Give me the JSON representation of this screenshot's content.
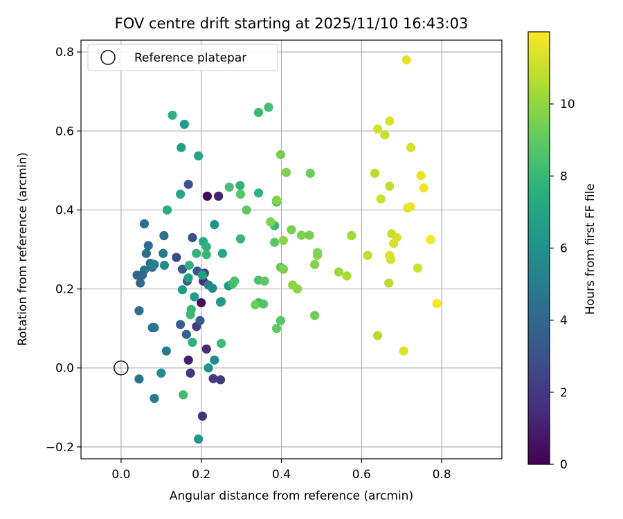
{
  "chart_data": {
    "type": "scatter",
    "title": "FOV centre drift starting at 2025/11/10 16:43:03",
    "xlabel": "Angular distance from reference (arcmin)",
    "ylabel": "Rotation from reference (arcmin)",
    "xlim": [
      -0.1,
      0.95
    ],
    "ylim": [
      -0.23,
      0.83
    ],
    "xticks": [
      0.0,
      0.2,
      0.4,
      0.6,
      0.8
    ],
    "xtick_labels": [
      "0.0",
      "0.2",
      "0.4",
      "0.6",
      "0.8"
    ],
    "yticks": [
      -0.2,
      0.0,
      0.2,
      0.4,
      0.6,
      0.8
    ],
    "ytick_labels": [
      "−0.2",
      "0.0",
      "0.2",
      "0.4",
      "0.6",
      "0.8"
    ],
    "grid": true,
    "legend": {
      "position": "top-left",
      "entries": [
        "Reference platepar"
      ]
    },
    "reference_point": {
      "x": 0.0,
      "y": 0.0,
      "label": "Reference platepar"
    },
    "colorbar": {
      "label": "Hours from first FF file",
      "colormap": "viridis",
      "range": [
        0,
        12
      ],
      "ticks": [
        0,
        2,
        4,
        6,
        8,
        10
      ],
      "tick_labels": [
        "0",
        "2",
        "4",
        "6",
        "8",
        "10"
      ]
    },
    "points": [
      {
        "x": 0.215,
        "y": 0.435,
        "c": 0.2
      },
      {
        "x": 0.243,
        "y": 0.435,
        "c": 1.2
      },
      {
        "x": 0.2,
        "y": 0.165,
        "c": 0.4
      },
      {
        "x": 0.168,
        "y": 0.02,
        "c": 1.0
      },
      {
        "x": 0.213,
        "y": 0.048,
        "c": 1.4
      },
      {
        "x": 0.203,
        "y": -0.122,
        "c": 1.7
      },
      {
        "x": 0.173,
        "y": -0.013,
        "c": 1.9
      },
      {
        "x": 0.23,
        "y": -0.027,
        "c": 2.0
      },
      {
        "x": 0.248,
        "y": -0.03,
        "c": 2.1
      },
      {
        "x": 0.205,
        "y": 0.22,
        "c": 1.5
      },
      {
        "x": 0.188,
        "y": 0.105,
        "c": 2.2
      },
      {
        "x": 0.208,
        "y": 0.24,
        "c": 2.3
      },
      {
        "x": 0.138,
        "y": 0.28,
        "c": 2.6
      },
      {
        "x": 0.168,
        "y": 0.465,
        "c": 3.0
      },
      {
        "x": 0.178,
        "y": 0.33,
        "c": 3.1
      },
      {
        "x": 0.165,
        "y": 0.22,
        "c": 3.3
      },
      {
        "x": 0.19,
        "y": 0.245,
        "c": 3.2
      },
      {
        "x": 0.197,
        "y": 0.12,
        "c": 3.4
      },
      {
        "x": 0.148,
        "y": 0.11,
        "c": 3.7
      },
      {
        "x": 0.153,
        "y": 0.25,
        "c": 3.5
      },
      {
        "x": 0.163,
        "y": 0.085,
        "c": 3.8
      },
      {
        "x": 0.04,
        "y": 0.235,
        "c": 3.9
      },
      {
        "x": 0.048,
        "y": 0.215,
        "c": 4.0
      },
      {
        "x": 0.068,
        "y": 0.31,
        "c": 4.1
      },
      {
        "x": 0.058,
        "y": 0.365,
        "c": 4.3
      },
      {
        "x": 0.063,
        "y": 0.29,
        "c": 4.4
      },
      {
        "x": 0.073,
        "y": 0.265,
        "c": 4.2
      },
      {
        "x": 0.058,
        "y": 0.248,
        "c": 4.5
      },
      {
        "x": 0.053,
        "y": 0.235,
        "c": 4.0
      },
      {
        "x": 0.078,
        "y": 0.255,
        "c": 4.6
      },
      {
        "x": 0.107,
        "y": 0.335,
        "c": 4.3
      },
      {
        "x": 0.105,
        "y": 0.29,
        "c": 4.9
      },
      {
        "x": 0.083,
        "y": 0.262,
        "c": 5.3
      },
      {
        "x": 0.108,
        "y": 0.26,
        "c": 5.6
      },
      {
        "x": 0.045,
        "y": 0.145,
        "c": 4.2
      },
      {
        "x": 0.078,
        "y": 0.102,
        "c": 4.5
      },
      {
        "x": 0.083,
        "y": 0.102,
        "c": 4.7
      },
      {
        "x": 0.113,
        "y": 0.043,
        "c": 4.9
      },
      {
        "x": 0.045,
        "y": -0.028,
        "c": 4.5
      },
      {
        "x": 0.083,
        "y": -0.077,
        "c": 4.9
      },
      {
        "x": 0.1,
        "y": -0.013,
        "c": 5.6
      },
      {
        "x": 0.233,
        "y": 0.02,
        "c": 5.8
      },
      {
        "x": 0.218,
        "y": 0.0,
        "c": 6.0
      },
      {
        "x": 0.193,
        "y": -0.18,
        "c": 6.3
      },
      {
        "x": 0.218,
        "y": 0.21,
        "c": 5.2
      },
      {
        "x": 0.228,
        "y": 0.202,
        "c": 5.7
      },
      {
        "x": 0.233,
        "y": 0.363,
        "c": 6.1
      },
      {
        "x": 0.248,
        "y": 0.167,
        "c": 5.5
      },
      {
        "x": 0.25,
        "y": 0.168,
        "c": 6.4
      },
      {
        "x": 0.253,
        "y": 0.29,
        "c": 7.0
      },
      {
        "x": 0.268,
        "y": 0.208,
        "c": 6.3
      },
      {
        "x": 0.203,
        "y": 0.235,
        "c": 6.7
      },
      {
        "x": 0.183,
        "y": 0.18,
        "c": 6.6
      },
      {
        "x": 0.153,
        "y": 0.198,
        "c": 6.4
      },
      {
        "x": 0.168,
        "y": 0.228,
        "c": 6.9
      },
      {
        "x": 0.158,
        "y": 0.617,
        "c": 6.5
      },
      {
        "x": 0.15,
        "y": 0.558,
        "c": 6.8
      },
      {
        "x": 0.193,
        "y": 0.537,
        "c": 7.0
      },
      {
        "x": 0.128,
        "y": 0.64,
        "c": 7.6
      },
      {
        "x": 0.148,
        "y": 0.44,
        "c": 7.1
      },
      {
        "x": 0.115,
        "y": 0.4,
        "c": 7.4
      },
      {
        "x": 0.205,
        "y": 0.32,
        "c": 7.3
      },
      {
        "x": 0.213,
        "y": 0.307,
        "c": 7.7
      },
      {
        "x": 0.213,
        "y": 0.287,
        "c": 7.9
      },
      {
        "x": 0.188,
        "y": 0.29,
        "c": 7.8
      },
      {
        "x": 0.17,
        "y": 0.26,
        "c": 7.7
      },
      {
        "x": 0.175,
        "y": 0.148,
        "c": 8.0
      },
      {
        "x": 0.173,
        "y": 0.135,
        "c": 8.1
      },
      {
        "x": 0.178,
        "y": 0.065,
        "c": 7.6
      },
      {
        "x": 0.25,
        "y": 0.062,
        "c": 8.1
      },
      {
        "x": 0.155,
        "y": -0.068,
        "c": 8.2
      },
      {
        "x": 0.278,
        "y": 0.213,
        "c": 8.1
      },
      {
        "x": 0.283,
        "y": 0.22,
        "c": 8.4
      },
      {
        "x": 0.298,
        "y": 0.327,
        "c": 7.9
      },
      {
        "x": 0.297,
        "y": 0.462,
        "c": 7.7
      },
      {
        "x": 0.27,
        "y": 0.458,
        "c": 8.4
      },
      {
        "x": 0.298,
        "y": 0.44,
        "c": 8.8
      },
      {
        "x": 0.313,
        "y": 0.4,
        "c": 9.0
      },
      {
        "x": 0.343,
        "y": 0.443,
        "c": 7.7
      },
      {
        "x": 0.343,
        "y": 0.647,
        "c": 8.1
      },
      {
        "x": 0.368,
        "y": 0.66,
        "c": 8.3
      },
      {
        "x": 0.343,
        "y": 0.222,
        "c": 8.5
      },
      {
        "x": 0.343,
        "y": 0.165,
        "c": 7.9
      },
      {
        "x": 0.355,
        "y": 0.162,
        "c": 8.7
      },
      {
        "x": 0.358,
        "y": 0.22,
        "c": 9.0
      },
      {
        "x": 0.335,
        "y": 0.16,
        "c": 9.2
      },
      {
        "x": 0.383,
        "y": 0.36,
        "c": 8.0
      },
      {
        "x": 0.388,
        "y": 0.42,
        "c": 8.5
      },
      {
        "x": 0.383,
        "y": 0.318,
        "c": 8.9
      },
      {
        "x": 0.398,
        "y": 0.255,
        "c": 9.0
      },
      {
        "x": 0.388,
        "y": 0.1,
        "c": 9.0
      },
      {
        "x": 0.398,
        "y": 0.12,
        "c": 8.8
      },
      {
        "x": 0.398,
        "y": 0.54,
        "c": 9.4
      },
      {
        "x": 0.412,
        "y": 0.495,
        "c": 9.6
      },
      {
        "x": 0.472,
        "y": 0.493,
        "c": 9.2
      },
      {
        "x": 0.388,
        "y": 0.425,
        "c": 9.8
      },
      {
        "x": 0.373,
        "y": 0.37,
        "c": 9.7
      },
      {
        "x": 0.405,
        "y": 0.25,
        "c": 9.6
      },
      {
        "x": 0.405,
        "y": 0.323,
        "c": 9.9
      },
      {
        "x": 0.425,
        "y": 0.35,
        "c": 9.5
      },
      {
        "x": 0.45,
        "y": 0.336,
        "c": 9.6
      },
      {
        "x": 0.47,
        "y": 0.336,
        "c": 9.4
      },
      {
        "x": 0.428,
        "y": 0.21,
        "c": 9.8
      },
      {
        "x": 0.44,
        "y": 0.2,
        "c": 9.9
      },
      {
        "x": 0.483,
        "y": 0.262,
        "c": 9.7
      },
      {
        "x": 0.49,
        "y": 0.285,
        "c": 9.9
      },
      {
        "x": 0.49,
        "y": 0.292,
        "c": 9.6
      },
      {
        "x": 0.483,
        "y": 0.133,
        "c": 9.3
      },
      {
        "x": 0.543,
        "y": 0.243,
        "c": 10.2
      },
      {
        "x": 0.563,
        "y": 0.233,
        "c": 10.4
      },
      {
        "x": 0.575,
        "y": 0.335,
        "c": 10.3
      },
      {
        "x": 0.615,
        "y": 0.285,
        "c": 10.8
      },
      {
        "x": 0.633,
        "y": 0.493,
        "c": 10.7
      },
      {
        "x": 0.64,
        "y": 0.605,
        "c": 11.2
      },
      {
        "x": 0.658,
        "y": 0.59,
        "c": 11.0
      },
      {
        "x": 0.67,
        "y": 0.625,
        "c": 11.3
      },
      {
        "x": 0.648,
        "y": 0.428,
        "c": 11.1
      },
      {
        "x": 0.67,
        "y": 0.46,
        "c": 10.9
      },
      {
        "x": 0.675,
        "y": 0.34,
        "c": 11.0
      },
      {
        "x": 0.68,
        "y": 0.315,
        "c": 11.2
      },
      {
        "x": 0.688,
        "y": 0.33,
        "c": 11.3
      },
      {
        "x": 0.67,
        "y": 0.285,
        "c": 11.5
      },
      {
        "x": 0.673,
        "y": 0.275,
        "c": 11.2
      },
      {
        "x": 0.668,
        "y": 0.215,
        "c": 10.7
      },
      {
        "x": 0.64,
        "y": 0.082,
        "c": 10.6
      },
      {
        "x": 0.705,
        "y": 0.043,
        "c": 11.4
      },
      {
        "x": 0.712,
        "y": 0.78,
        "c": 11.5
      },
      {
        "x": 0.723,
        "y": 0.558,
        "c": 11.2
      },
      {
        "x": 0.748,
        "y": 0.487,
        "c": 11.6
      },
      {
        "x": 0.755,
        "y": 0.456,
        "c": 11.7
      },
      {
        "x": 0.715,
        "y": 0.405,
        "c": 11.4
      },
      {
        "x": 0.722,
        "y": 0.408,
        "c": 11.6
      },
      {
        "x": 0.74,
        "y": 0.253,
        "c": 11.1
      },
      {
        "x": 0.772,
        "y": 0.325,
        "c": 11.8
      },
      {
        "x": 0.788,
        "y": 0.163,
        "c": 11.8
      }
    ]
  }
}
